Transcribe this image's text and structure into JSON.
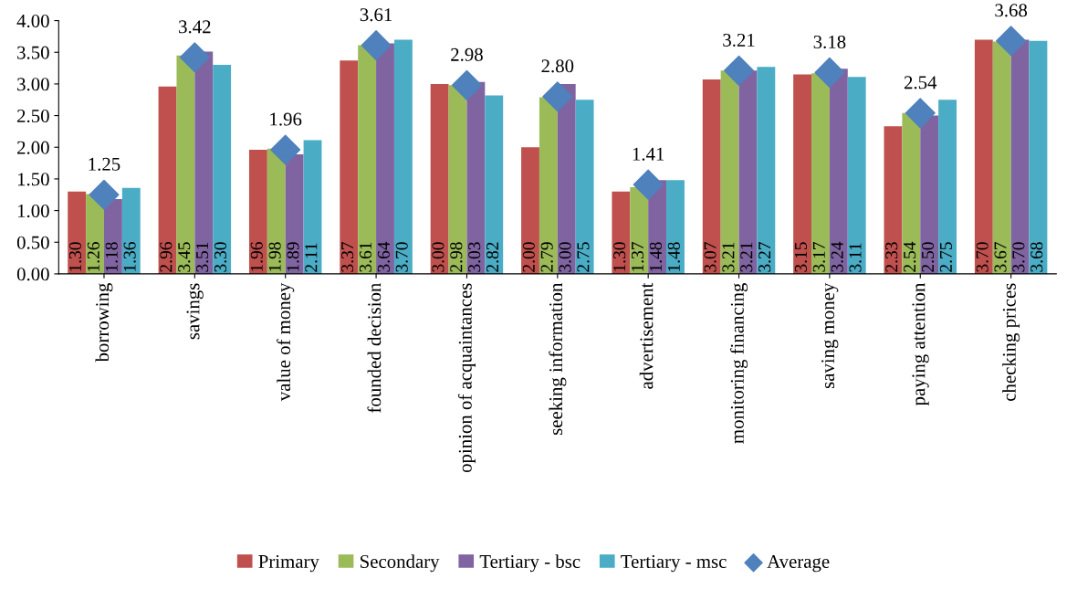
{
  "chart_data": {
    "type": "bar",
    "categories": [
      "borrowing",
      "savings",
      "value of money",
      "founded decision",
      "opinion of acquaintances",
      "seeking information",
      "advertisement",
      "monitoring financing",
      "saving money",
      "paying attention",
      "checking prices"
    ],
    "ylim": [
      0,
      4
    ],
    "yticks": [
      {
        "value": 0,
        "label": "0.00"
      },
      {
        "value": 0.5,
        "label": "0.50"
      },
      {
        "value": 1,
        "label": "1.00"
      },
      {
        "value": 1.5,
        "label": "1.50"
      },
      {
        "value": 2,
        "label": "2.00"
      },
      {
        "value": 2.5,
        "label": "2.50"
      },
      {
        "value": 3,
        "label": "3.00"
      },
      {
        "value": 3.5,
        "label": "3.50"
      },
      {
        "value": 4,
        "label": "4.00"
      }
    ],
    "grid": false,
    "legend": "bottom",
    "series": [
      {
        "name": "Primary",
        "color": "#c0504d",
        "values": [
          1.3,
          2.96,
          1.96,
          3.37,
          3.0,
          2.0,
          1.3,
          3.07,
          3.15,
          2.33,
          3.7
        ],
        "value_labels": [
          "1.30",
          "2.96",
          "1.96",
          "3.37",
          "3.00",
          "2.00",
          "1.30",
          "3.07",
          "3.15",
          "2.33",
          "3.70"
        ]
      },
      {
        "name": "Secondary",
        "color": "#9bbb59",
        "values": [
          1.26,
          3.45,
          1.98,
          3.61,
          2.98,
          2.79,
          1.37,
          3.21,
          3.17,
          2.54,
          3.67
        ],
        "value_labels": [
          "1.26",
          "3.45",
          "1.98",
          "3.61",
          "2.98",
          "2.79",
          "1.37",
          "3.21",
          "3.17",
          "2.54",
          "3.67"
        ]
      },
      {
        "name": "Tertiary - bsc",
        "color": "#8064a2",
        "values": [
          1.18,
          3.51,
          1.89,
          3.64,
          3.03,
          3.0,
          1.48,
          3.21,
          3.24,
          2.5,
          3.7
        ],
        "value_labels": [
          "1.18",
          "3.51",
          "1.89",
          "3.64",
          "3.03",
          "3.00",
          "1.48",
          "3.21",
          "3.24",
          "2.50",
          "3.70"
        ]
      },
      {
        "name": "Tertiary - msc",
        "color": "#4bacc6",
        "values": [
          1.36,
          3.3,
          2.11,
          3.7,
          2.82,
          2.75,
          1.48,
          3.27,
          3.11,
          2.75,
          3.68
        ],
        "value_labels": [
          "1.36",
          "3.30",
          "2.11",
          "3.70",
          "2.82",
          "2.75",
          "1.48",
          "3.27",
          "3.11",
          "2.75",
          "3.68"
        ]
      },
      {
        "name": "Average",
        "type": "scatter",
        "marker": "diamond",
        "color": "#4f81bd",
        "x": [
          "borrowing",
          "savings",
          "value of money",
          "founded decision",
          "opinion of acquaintances",
          "seeking information",
          "advertisement",
          "monitoring financing",
          "saving money",
          "paying attention",
          "checking prices"
        ],
        "values": [
          1.25,
          3.42,
          1.96,
          3.61,
          2.98,
          2.8,
          1.41,
          3.21,
          3.18,
          2.54,
          3.68
        ],
        "value_labels": [
          "1.25",
          "3.42",
          "1.96",
          "3.61",
          "2.98",
          "2.80",
          "1.41",
          "3.21",
          "3.18",
          "2.54",
          "3.68"
        ]
      }
    ]
  }
}
